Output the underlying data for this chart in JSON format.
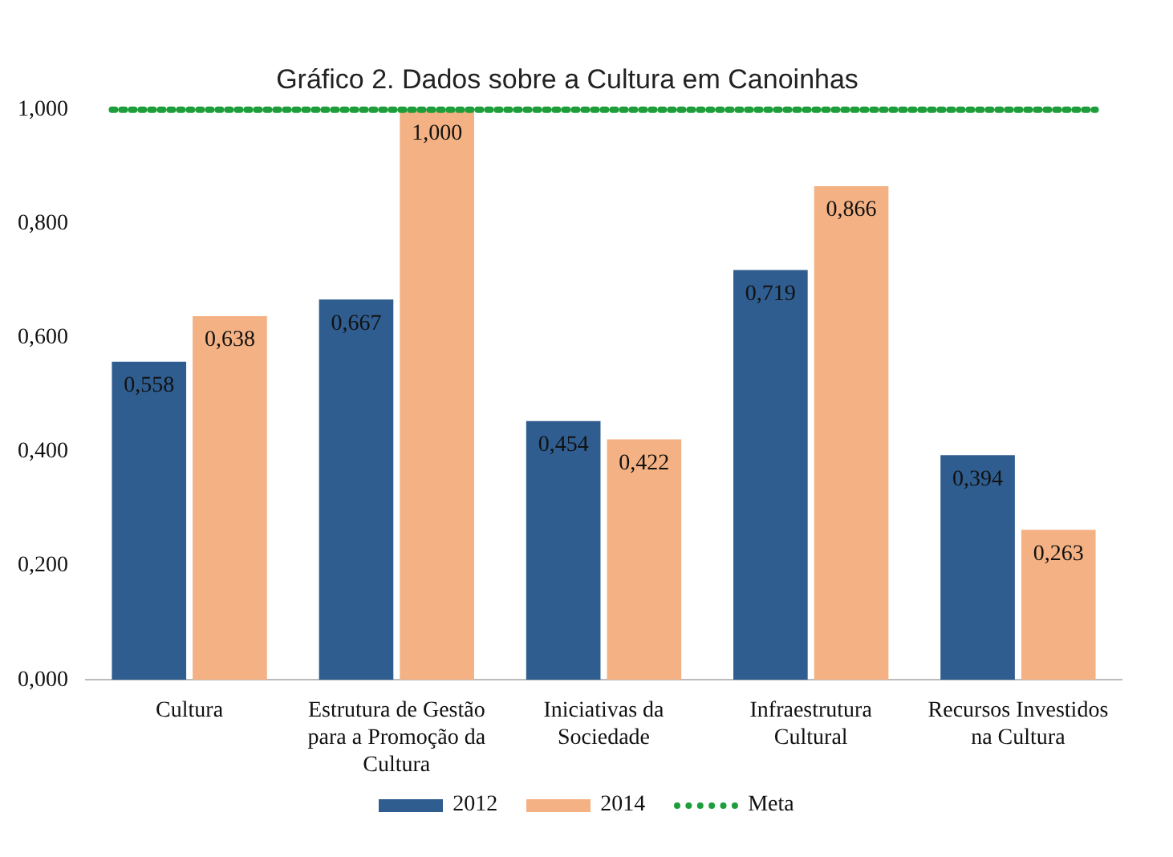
{
  "chart_data": {
    "type": "bar",
    "title": "Gráfico 2. Dados sobre a Cultura em Canoinhas",
    "categories": [
      "Cultura",
      "Estrutura de Gestão para a Promoção da Cultura",
      "Iniciativas da Sociedade",
      "Infraestrutura Cultural",
      "Recursos Investidos na Cultura"
    ],
    "series": [
      {
        "name": "2012",
        "color": "#2f5d8f",
        "values": [
          0.558,
          0.667,
          0.454,
          0.719,
          0.394
        ],
        "value_labels": [
          "0,558",
          "0,667",
          "0,454",
          "0,719",
          "0,394"
        ]
      },
      {
        "name": "2014",
        "color": "#f4b183",
        "values": [
          0.638,
          1.0,
          0.422,
          0.866,
          0.263
        ],
        "value_labels": [
          "0,638",
          "1,000",
          "0,422",
          "0,866",
          "0,263"
        ]
      }
    ],
    "ylim": [
      0,
      1
    ],
    "yticks": [
      {
        "value": 0,
        "label": "0,000"
      },
      {
        "value": 0.2,
        "label": "0,200"
      },
      {
        "value": 0.4,
        "label": "0,400"
      },
      {
        "value": 0.6,
        "label": "0,600"
      },
      {
        "value": 0.8,
        "label": "0,800"
      },
      {
        "value": 1,
        "label": "1,000"
      }
    ],
    "ref_lines": [
      {
        "axis": "y",
        "value": 1,
        "label": "Meta",
        "color": "#1e9e3a",
        "line_style": "dotted"
      }
    ],
    "grid": false,
    "legend": "bottom"
  }
}
